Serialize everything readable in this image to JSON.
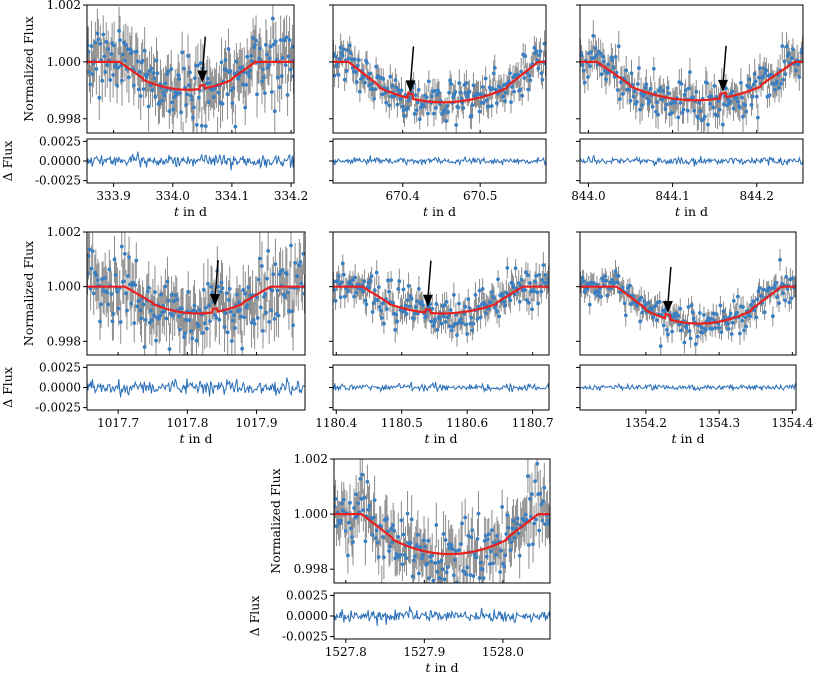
{
  "chart_data": {
    "type": "scatter",
    "description_labels": {
      "ylabel_flux": "Normalized Flux",
      "ylabel_resid": "Δ Flux",
      "xlabel": "t in d"
    },
    "colors": {
      "data": "#3a7fc1",
      "errorbar": "#8c8c8c",
      "model": "#e8201e",
      "residual": "#2a6fb8",
      "arrow": "#000000"
    },
    "flux_ylim": [
      0.9975,
      1.002
    ],
    "flux_yticks": [
      "0.998",
      "1.000",
      "1.002"
    ],
    "resid_ylim": [
      -0.0028,
      0.0028
    ],
    "resid_yticks": [
      "-0.0025",
      "0.0000",
      "0.0025"
    ],
    "panels": [
      {
        "id": 1,
        "xlim": [
          333.855,
          334.205
        ],
        "xticks": [
          333.9,
          334.0,
          334.1,
          334.2
        ],
        "xticklabels": [
          "333.9",
          "334.0",
          "334.1",
          "334.2"
        ],
        "ingress": [
          333.91,
          333.95
        ],
        "egress": [
          334.1,
          334.14
        ],
        "depth": 0.00098,
        "arrow_t": 334.05,
        "flat_end_step": 334.063,
        "scatter": 0.00065
      },
      {
        "id": 2,
        "xlim": [
          670.31,
          670.585
        ],
        "xticks": [
          670.4,
          670.5
        ],
        "xticklabels": [
          "670.4",
          "670.5"
        ],
        "ingress": [
          670.33,
          670.37
        ],
        "egress": [
          670.535,
          670.575
        ],
        "depth": 0.00142,
        "arrow_t": 670.41,
        "scatter": 0.00035
      },
      {
        "id": 3,
        "xlim": [
          843.99,
          844.255
        ],
        "xticks": [
          844.0,
          844.1,
          844.2
        ],
        "xticklabels": [
          "844.0",
          "844.1",
          "844.2"
        ],
        "ingress": [
          844.01,
          844.05
        ],
        "egress": [
          844.205,
          844.245
        ],
        "depth": 0.00135,
        "arrow_t": 844.16,
        "scatter": 0.0004
      },
      {
        "id": 4,
        "xlim": [
          1017.655,
          1017.97
        ],
        "xticks": [
          1017.7,
          1017.8,
          1017.9
        ],
        "xticklabels": [
          "1017.7",
          "1017.8",
          "1017.9"
        ],
        "ingress": [
          1017.71,
          1017.75
        ],
        "egress": [
          1017.88,
          1017.92
        ],
        "depth": 0.00098,
        "arrow_t": 1017.84,
        "scatter": 0.0007
      },
      {
        "id": 5,
        "xlim": [
          1180.395,
          1180.725
        ],
        "xticks": [
          1180.4,
          1180.5,
          1180.6,
          1180.7
        ],
        "xticklabels": [
          "1180.4",
          "1180.5",
          "1180.6",
          "1180.7"
        ],
        "ingress": [
          1180.44,
          1180.48
        ],
        "egress": [
          1180.645,
          1180.685
        ],
        "depth": 0.00098,
        "arrow_t": 1180.54,
        "scatter": 0.00035
      },
      {
        "id": 6,
        "xlim": [
          1354.11,
          1354.405
        ],
        "xticks": [
          1354.2,
          1354.3,
          1354.4
        ],
        "xticklabels": [
          "1354.2",
          "1354.3",
          "1354.4"
        ],
        "ingress": [
          1354.16,
          1354.2
        ],
        "egress": [
          1354.345,
          1354.385
        ],
        "depth": 0.00135,
        "arrow_t": 1354.23,
        "scatter": 0.0003
      },
      {
        "id": 7,
        "xlim": [
          1527.785,
          1528.06
        ],
        "xticks": [
          1527.8,
          1527.9,
          1528.0
        ],
        "xticklabels": [
          "1527.8",
          "1527.9",
          "1528.0"
        ],
        "ingress": [
          1527.82,
          1527.86
        ],
        "egress": [
          1528.005,
          1528.045
        ],
        "depth": 0.00145,
        "arrow_t": null,
        "scatter": 0.00065
      }
    ]
  }
}
